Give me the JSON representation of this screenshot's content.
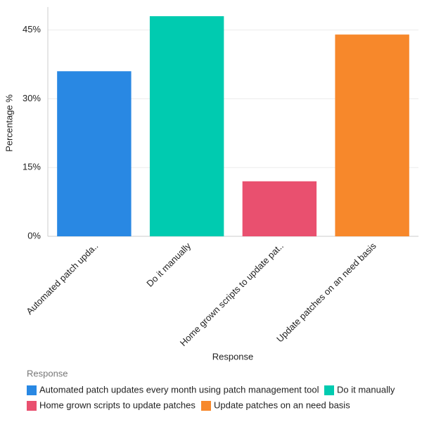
{
  "chart_data": {
    "type": "bar",
    "x_label": "Response",
    "y_label": "Percentage %",
    "categories": [
      "Automated patch upda..",
      "Do it manually",
      "Home grown scripts to update pat..",
      "Update patches on an need basis"
    ],
    "values": [
      36,
      48,
      12,
      44
    ],
    "colors": [
      "#2988e3",
      "#00cbb0",
      "#e9506f",
      "#f7882b"
    ],
    "ylim": [
      0,
      50
    ],
    "yticks": [
      {
        "value": 0,
        "label": "0%"
      },
      {
        "value": 15,
        "label": "15%"
      },
      {
        "value": 30,
        "label": "30%"
      },
      {
        "value": 45,
        "label": "45%"
      }
    ],
    "grid": true,
    "legend_title": "Response",
    "legend_labels": [
      "Automated patch updates every month using patch management tool",
      "Do it manually",
      "Home grown scripts to update patches",
      "Update patches on an need basis"
    ]
  }
}
